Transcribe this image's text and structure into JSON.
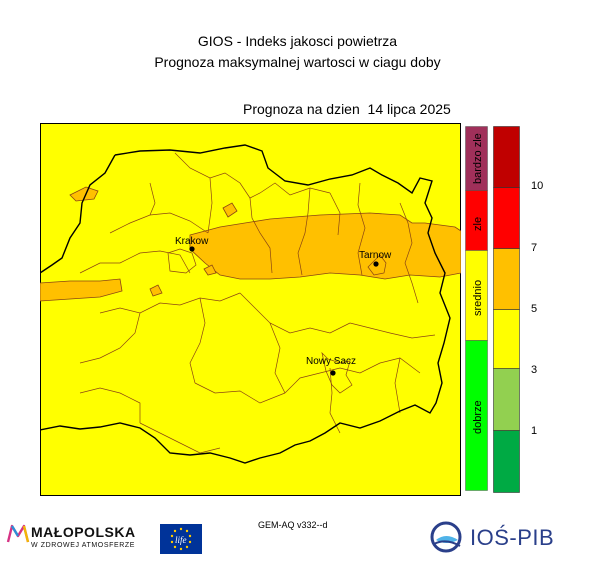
{
  "header": {
    "title_line1": "GIOS - Indeks jakosci powietrza",
    "title_line2": "Prognoza maksymalnej wartosci w ciagu doby",
    "forecast_date": "Prognoza na dzien  14 lipca 2025"
  },
  "map": {
    "cities": [
      {
        "name": "Krakow"
      },
      {
        "name": "Tarnow"
      },
      {
        "name": "Nowy Sacz"
      }
    ],
    "colors": {
      "dominant": "#ffff00",
      "moderate_high": "#ffc000",
      "boundary": "#000000",
      "district": "#8b4513"
    }
  },
  "categories": [
    {
      "label": "bardzo zle",
      "color": "#a0305a"
    },
    {
      "label": "zle",
      "color": "#ff0000"
    },
    {
      "label": "srednio",
      "color": "#ffff00"
    },
    {
      "label": "dobrze",
      "color": "#00ff00"
    }
  ],
  "scale": {
    "colors": [
      "#00aa44",
      "#92d050",
      "#ffff00",
      "#ffc000",
      "#ff0000",
      "#c00000"
    ],
    "ticks": [
      "10",
      "7",
      "5",
      "3",
      "1"
    ]
  },
  "footer": {
    "model": "GEM-AQ v332--d",
    "malopolska_name": "MAŁOPOLSKA",
    "malopolska_sub": "W ZDROWEJ ATMOSFERZE",
    "eu_logo_text": "life",
    "ios_name": "IOŚ-PIB"
  }
}
